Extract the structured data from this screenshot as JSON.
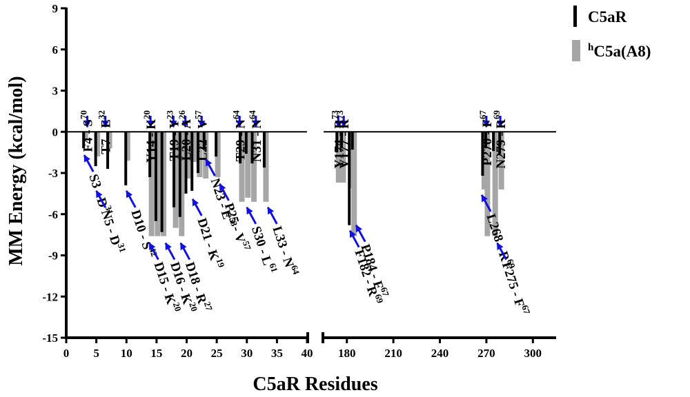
{
  "chart_data": {
    "type": "bar",
    "title": "",
    "xlabel": "C5aR Residues",
    "ylabel": "MM Energy (kcal/mol)",
    "ylim": [
      -15,
      9
    ],
    "yticks": [
      9,
      6,
      3,
      0,
      -3,
      -6,
      -9,
      -12,
      -15
    ],
    "xlim_segments": [
      [
        0,
        40
      ],
      [
        165,
        315
      ]
    ],
    "xticks": [
      0,
      5,
      10,
      15,
      20,
      25,
      30,
      35,
      40,
      180,
      210,
      240,
      270,
      300
    ],
    "axis_break": true,
    "legend_position": "top-right",
    "colors": {
      "C5aR": "#000000",
      "hC5a(A8)": "#a6a6a6",
      "arrow": "#1010e0",
      "zero_line": "#000000"
    },
    "series": [
      {
        "name": "C5aR",
        "legend": {
          "pre": "",
          "sup": "",
          "main": "C5aR"
        },
        "x": [
          3,
          5,
          7,
          10,
          14,
          15,
          16,
          18,
          19,
          20,
          21,
          22,
          23,
          25,
          29,
          30,
          31,
          33,
          174,
          177,
          182,
          184,
          268,
          270,
          275,
          279
        ],
        "values": [
          -1.2,
          -2.5,
          -2.7,
          -3.9,
          -3.3,
          -6.5,
          -7.3,
          -5.5,
          -6.2,
          -4.5,
          -4.3,
          -3.0,
          -1.3,
          -1.8,
          -2.3,
          -1.6,
          -2.3,
          -2.6,
          -1.5,
          -1.2,
          -6.8,
          -1.3,
          -3.2,
          -1.2,
          -1.4,
          -1.6
        ]
      },
      {
        "name": "hC5a(A8)",
        "legend": {
          "pre": "h",
          "sup": "h",
          "main": "C5a(A8)"
        },
        "x": [
          3,
          5,
          7,
          10,
          14,
          15,
          16,
          18,
          19,
          20,
          21,
          22,
          23,
          25,
          29,
          30,
          31,
          33,
          174,
          177,
          182,
          184,
          268,
          270,
          275,
          279
        ],
        "values": [
          -0.5,
          -1.8,
          -1.2,
          -2.1,
          -7.6,
          -7.6,
          -7.6,
          -7.0,
          -7.6,
          -3.4,
          -2.2,
          -3.3,
          -3.4,
          -3.3,
          -5.1,
          -4.8,
          -5.1,
          -5.1,
          -3.7,
          -3.7,
          -4.1,
          -7.6,
          -4.2,
          -7.6,
          -7.6,
          -4.2
        ]
      }
    ],
    "annotations": [
      {
        "label": "F4 - S",
        "sup": "70",
        "x": 3.5,
        "y_end": 0.15,
        "side": "above"
      },
      {
        "label": "T7 - E",
        "sup": "32",
        "x": 6.5,
        "y_end": 0.15,
        "side": "above"
      },
      {
        "label": "Y14 - K",
        "sup": "20",
        "x": 14.0,
        "y_end": 0.15,
        "side": "above"
      },
      {
        "label": "T19 - Y",
        "sup": "23",
        "x": 17.8,
        "y_end": 0.15,
        "side": "above"
      },
      {
        "label": "L20 - A",
        "sup": "26",
        "x": 19.8,
        "y_end": 0.15,
        "side": "above"
      },
      {
        "label": "L22 - V",
        "sup": "57",
        "x": 22.5,
        "y_end": 0.15,
        "side": "above"
      },
      {
        "label": "T29 - N",
        "sup": "64",
        "x": 28.8,
        "y_end": 0.15,
        "side": "above"
      },
      {
        "label": "N31 - N",
        "sup": "64",
        "x": 31.5,
        "y_end": 0.15,
        "side": "above"
      },
      {
        "label": "Y174 - R",
        "sup": "73",
        "x": 174.5,
        "y_end": 0.15,
        "side": "above"
      },
      {
        "label": "V177 - R",
        "sup": "73",
        "x": 178.0,
        "y_end": 0.15,
        "side": "above"
      },
      {
        "label": "P270 - F",
        "sup": "67",
        "x": 270.0,
        "y_end": 0.15,
        "side": "above"
      },
      {
        "label": "N279 - R",
        "sup": "69",
        "x": 279.0,
        "y_end": 0.15,
        "side": "above"
      },
      {
        "label": "S3 - D",
        "sup": "31",
        "x": 3.0,
        "y_end": -1.5,
        "side": "below"
      },
      {
        "label": "N5 - D",
        "sup": "31",
        "x": 5.0,
        "y_end": -4.1,
        "side": "below"
      },
      {
        "label": "D10 - S",
        "sup": "42",
        "x": 10.0,
        "y_end": -4.1,
        "side": "below"
      },
      {
        "label": "D15 - K",
        "sup": "20",
        "x": 13.8,
        "y_end": -7.9,
        "side": "below"
      },
      {
        "label": "D16 - K",
        "sup": "20",
        "x": 16.5,
        "y_end": -7.9,
        "side": "below"
      },
      {
        "label": "D18 - R",
        "sup": "27",
        "x": 19.0,
        "y_end": -7.9,
        "side": "below"
      },
      {
        "label": "D21 - K",
        "sup": "19",
        "x": 21.0,
        "y_end": -4.7,
        "side": "below"
      },
      {
        "label": "N23 - E",
        "sup": "53",
        "x": 23.2,
        "y_end": -1.8,
        "side": "below"
      },
      {
        "label": "P25 - V",
        "sup": "57",
        "x": 25.5,
        "y_end": -3.6,
        "side": "below"
      },
      {
        "label": "S30 - L",
        "sup": "61",
        "x": 30.0,
        "y_end": -5.3,
        "side": "below"
      },
      {
        "label": "L33 - N",
        "sup": "64",
        "x": 33.5,
        "y_end": -5.3,
        "side": "below"
      },
      {
        "label": "F182 - R",
        "sup": "69",
        "x": 182.0,
        "y_end": -7.0,
        "side": "below"
      },
      {
        "label": "P184 - F",
        "sup": "67",
        "x": 186.0,
        "y_end": -6.6,
        "side": "below"
      },
      {
        "label": "L268 - R",
        "sup": "69",
        "x": 267.0,
        "y_end": -4.4,
        "side": "below"
      },
      {
        "label": "F275 - F",
        "sup": "67",
        "x": 277.0,
        "y_end": -7.9,
        "side": "below"
      }
    ]
  }
}
